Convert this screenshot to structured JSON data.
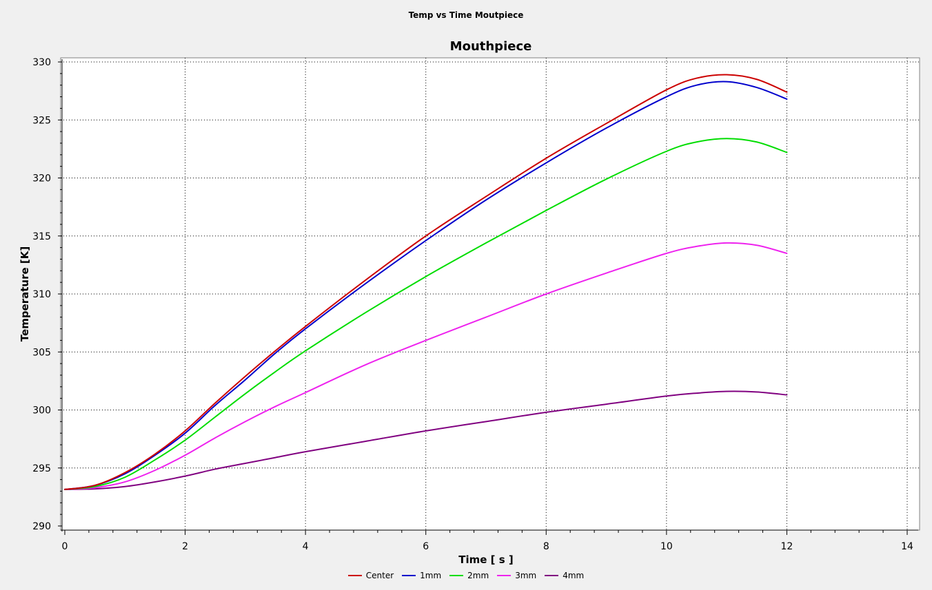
{
  "window": {
    "title": "Temp vs Time Moutpiece"
  },
  "chart_data": {
    "type": "line",
    "title": "Mouthpiece",
    "xlabel": "Time [ s ]",
    "ylabel": "Temperature [K]",
    "xlim": [
      0,
      14
    ],
    "ylim": [
      290,
      330
    ],
    "xticks": [
      0,
      2,
      4,
      6,
      8,
      10,
      12,
      14
    ],
    "yticks": [
      290,
      295,
      300,
      305,
      310,
      315,
      320,
      325,
      330
    ],
    "grid": true,
    "legend_position": "bottom",
    "x": [
      0,
      0.5,
      1,
      1.5,
      2,
      2.5,
      3,
      3.5,
      4,
      5,
      6,
      7,
      8,
      9,
      10,
      10.5,
      11,
      11.5,
      12
    ],
    "series": [
      {
        "name": "Center",
        "color": "#cc0000",
        "values": [
          293.15,
          293.5,
          294.6,
          296.2,
          298.2,
          300.6,
          302.9,
          305.1,
          307.2,
          311.2,
          315.0,
          318.4,
          321.7,
          324.7,
          327.6,
          328.6,
          328.9,
          328.5,
          327.4
        ]
      },
      {
        "name": "1mm",
        "color": "#0000cc",
        "values": [
          293.15,
          293.5,
          294.5,
          296.1,
          298.0,
          300.4,
          302.6,
          304.9,
          307.0,
          310.9,
          314.6,
          318.1,
          321.3,
          324.3,
          327.0,
          328.0,
          328.3,
          327.8,
          326.8
        ]
      },
      {
        "name": "2mm",
        "color": "#00dd00",
        "values": [
          293.15,
          293.4,
          294.2,
          295.7,
          297.4,
          299.4,
          301.4,
          303.3,
          305.1,
          308.4,
          311.5,
          314.4,
          317.2,
          319.9,
          322.3,
          323.1,
          323.4,
          323.1,
          322.2
        ]
      },
      {
        "name": "3mm",
        "color": "#ee22ee",
        "values": [
          293.15,
          293.3,
          293.8,
          294.8,
          296.1,
          297.6,
          299.0,
          300.3,
          301.5,
          303.9,
          306.0,
          308.0,
          310.0,
          311.8,
          313.5,
          314.1,
          314.4,
          314.2,
          313.5
        ]
      },
      {
        "name": "4mm",
        "color": "#800080",
        "values": [
          293.15,
          293.2,
          293.4,
          293.8,
          294.3,
          294.9,
          295.4,
          295.9,
          296.4,
          297.3,
          298.2,
          299.0,
          299.8,
          300.5,
          301.2,
          301.45,
          301.6,
          301.55,
          301.3
        ]
      }
    ]
  }
}
